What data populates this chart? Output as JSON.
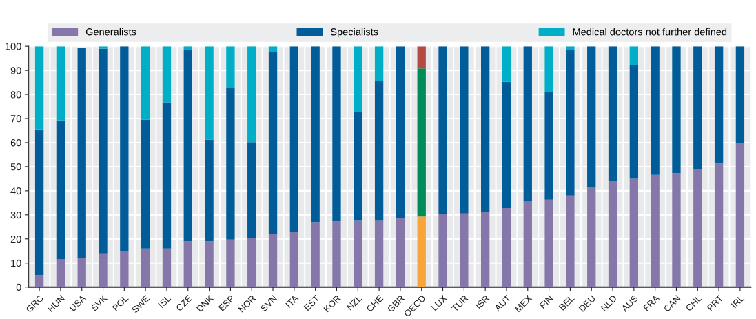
{
  "chart_data": {
    "type": "bar",
    "stacked": true,
    "grid": true,
    "legend": "top",
    "categories": [
      "GRC",
      "HUN",
      "USA",
      "SVK",
      "POL",
      "SWE",
      "ISL",
      "CZE",
      "DNK",
      "ESP",
      "NOR",
      "SVN",
      "ITA",
      "EST",
      "KOR",
      "NZL",
      "CHE",
      "GBR",
      "OECD",
      "LUX",
      "TUR",
      "ISR",
      "AUT",
      "MEX",
      "FIN",
      "BEL",
      "DEU",
      "NLD",
      "AUS",
      "FRA",
      "CAN",
      "CHL",
      "PRT",
      "IRL"
    ],
    "ylim": [
      0,
      100
    ],
    "yticks": [
      0,
      10,
      20,
      30,
      40,
      50,
      60,
      70,
      80,
      90,
      100
    ],
    "series": [
      {
        "name": "Generalists",
        "color": "#8677aa",
        "colors": [
          "#8677aa",
          "#8677aa",
          "#8677aa",
          "#8677aa",
          "#8677aa",
          "#8677aa",
          "#8677aa",
          "#8677aa",
          "#8677aa",
          "#8677aa",
          "#8677aa",
          "#8677aa",
          "#8677aa",
          "#8677aa",
          "#8677aa",
          "#8677aa",
          "#8677aa",
          "#8677aa",
          "#f7a43a",
          "#8677aa",
          "#8677aa",
          "#8677aa",
          "#8677aa",
          "#8677aa",
          "#8677aa",
          "#8677aa",
          "#8677aa",
          "#8677aa",
          "#8677aa",
          "#8677aa",
          "#8677aa",
          "#8677aa",
          "#8677aa",
          "#8677aa"
        ],
        "values": [
          5,
          11.5,
          12,
          14,
          15,
          16,
          16,
          19,
          19,
          19.7,
          20.3,
          22.2,
          22.8,
          27,
          27.3,
          27.5,
          27.5,
          28.8,
          29.3,
          30.5,
          30.6,
          31.2,
          32.8,
          35.5,
          36.3,
          38,
          41.7,
          44.2,
          45,
          46.6,
          47.3,
          48.7,
          51.3,
          59.8
        ]
      },
      {
        "name": "Specialists",
        "color": "#005d99",
        "colors": [
          "#005d99",
          "#005d99",
          "#005d99",
          "#005d99",
          "#005d99",
          "#005d99",
          "#005d99",
          "#005d99",
          "#005d99",
          "#005d99",
          "#005d99",
          "#005d99",
          "#005d99",
          "#005d99",
          "#005d99",
          "#005d99",
          "#005d99",
          "#005d99",
          "#008c5a",
          "#005d99",
          "#005d99",
          "#005d99",
          "#005d99",
          "#005d99",
          "#005d99",
          "#005d99",
          "#005d99",
          "#005d99",
          "#005d99",
          "#005d99",
          "#005d99",
          "#005d99",
          "#005d99",
          "#005d99"
        ],
        "values": [
          60.5,
          57.7,
          87.5,
          85,
          85,
          53.5,
          60.7,
          79.6,
          42.3,
          62.9,
          39.9,
          75.3,
          77.2,
          73,
          72.7,
          45.3,
          58,
          71.2,
          61.5,
          69.5,
          69.4,
          68.8,
          52.4,
          64.5,
          44.7,
          60.6,
          58.3,
          55.8,
          47.3,
          53.4,
          52.7,
          51.3,
          48.7,
          40.2
        ]
      },
      {
        "name": "Medical doctors not further defined",
        "color": "#00aec7",
        "colors": [
          "#00aec7",
          "#00aec7",
          "#00aec7",
          "#00aec7",
          "#00aec7",
          "#00aec7",
          "#00aec7",
          "#00aec7",
          "#00aec7",
          "#00aec7",
          "#00aec7",
          "#00aec7",
          "#00aec7",
          "#00aec7",
          "#00aec7",
          "#00aec7",
          "#00aec7",
          "#00aec7",
          "#b24c43",
          "#00aec7",
          "#00aec7",
          "#00aec7",
          "#00aec7",
          "#00aec7",
          "#00aec7",
          "#00aec7",
          "#00aec7",
          "#00aec7",
          "#00aec7",
          "#00aec7",
          "#00aec7",
          "#00aec7",
          "#00aec7",
          "#00aec7"
        ],
        "values": [
          34.5,
          30.8,
          0,
          1,
          0,
          30.5,
          23.3,
          1.4,
          38.7,
          17.4,
          39.8,
          2.5,
          0,
          0,
          0,
          27.2,
          14.5,
          0,
          9.2,
          0,
          0,
          0,
          14.8,
          0,
          19,
          1.4,
          0,
          0,
          7.7,
          0,
          0,
          0,
          0,
          0
        ]
      }
    ]
  }
}
